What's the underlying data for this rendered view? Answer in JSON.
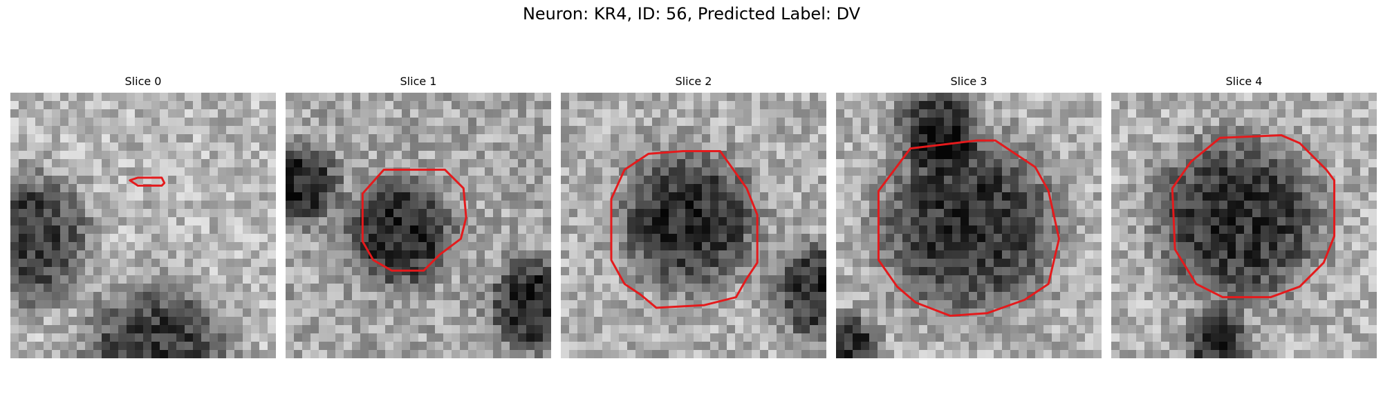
{
  "figure": {
    "title": "Neuron: KR4, ID: 56, Predicted Label: DV"
  },
  "overlay_color": "#e41a1c",
  "slices": [
    {
      "title": "Slice 0",
      "seed": 11,
      "dark_blobs": [
        [
          0.55,
          1.0,
          0.28
        ],
        [
          0.05,
          0.55,
          0.25
        ]
      ],
      "brightness": 0.72,
      "contour": [
        [
          0.45,
          0.33
        ],
        [
          0.48,
          0.32
        ],
        [
          0.57,
          0.32
        ],
        [
          0.58,
          0.34
        ],
        [
          0.57,
          0.35
        ],
        [
          0.48,
          0.35
        ]
      ]
    },
    {
      "title": "Slice 1",
      "seed": 23,
      "dark_blobs": [
        [
          0.43,
          0.53,
          0.2
        ],
        [
          0.05,
          0.35,
          0.15
        ],
        [
          0.95,
          0.8,
          0.18
        ]
      ],
      "brightness": 0.65,
      "contour": [
        [
          0.37,
          0.29
        ],
        [
          0.6,
          0.29
        ],
        [
          0.67,
          0.36
        ],
        [
          0.68,
          0.47
        ],
        [
          0.66,
          0.55
        ],
        [
          0.62,
          0.58
        ],
        [
          0.58,
          0.61
        ],
        [
          0.52,
          0.67
        ],
        [
          0.4,
          0.67
        ],
        [
          0.33,
          0.63
        ],
        [
          0.29,
          0.56
        ],
        [
          0.29,
          0.38
        ]
      ]
    },
    {
      "title": "Slice 2",
      "seed": 37,
      "dark_blobs": [
        [
          0.48,
          0.48,
          0.26
        ],
        [
          0.98,
          0.75,
          0.18
        ]
      ],
      "brightness": 0.68,
      "contour": [
        [
          0.33,
          0.23
        ],
        [
          0.46,
          0.22
        ],
        [
          0.6,
          0.22
        ],
        [
          0.7,
          0.36
        ],
        [
          0.74,
          0.46
        ],
        [
          0.74,
          0.64
        ],
        [
          0.7,
          0.7
        ],
        [
          0.66,
          0.77
        ],
        [
          0.54,
          0.8
        ],
        [
          0.36,
          0.81
        ],
        [
          0.3,
          0.76
        ],
        [
          0.24,
          0.72
        ],
        [
          0.19,
          0.63
        ],
        [
          0.19,
          0.4
        ],
        [
          0.24,
          0.29
        ]
      ]
    },
    {
      "title": "Slice 3",
      "seed": 51,
      "dark_blobs": [
        [
          0.5,
          0.5,
          0.34
        ],
        [
          0.38,
          0.12,
          0.15
        ],
        [
          0.05,
          0.95,
          0.12
        ]
      ],
      "brightness": 0.7,
      "contour": [
        [
          0.28,
          0.21
        ],
        [
          0.53,
          0.18
        ],
        [
          0.6,
          0.18
        ],
        [
          0.75,
          0.28
        ],
        [
          0.8,
          0.37
        ],
        [
          0.84,
          0.55
        ],
        [
          0.8,
          0.72
        ],
        [
          0.71,
          0.78
        ],
        [
          0.57,
          0.83
        ],
        [
          0.43,
          0.84
        ],
        [
          0.3,
          0.79
        ],
        [
          0.23,
          0.73
        ],
        [
          0.16,
          0.63
        ],
        [
          0.16,
          0.37
        ]
      ]
    },
    {
      "title": "Slice 4",
      "seed": 67,
      "dark_blobs": [
        [
          0.48,
          0.48,
          0.32
        ],
        [
          0.4,
          0.95,
          0.12
        ]
      ],
      "brightness": 0.7,
      "contour": [
        [
          0.41,
          0.17
        ],
        [
          0.64,
          0.16
        ],
        [
          0.71,
          0.19
        ],
        [
          0.81,
          0.29
        ],
        [
          0.84,
          0.33
        ],
        [
          0.84,
          0.54
        ],
        [
          0.8,
          0.64
        ],
        [
          0.71,
          0.73
        ],
        [
          0.6,
          0.77
        ],
        [
          0.42,
          0.77
        ],
        [
          0.32,
          0.72
        ],
        [
          0.24,
          0.59
        ],
        [
          0.23,
          0.36
        ],
        [
          0.3,
          0.26
        ]
      ]
    }
  ]
}
